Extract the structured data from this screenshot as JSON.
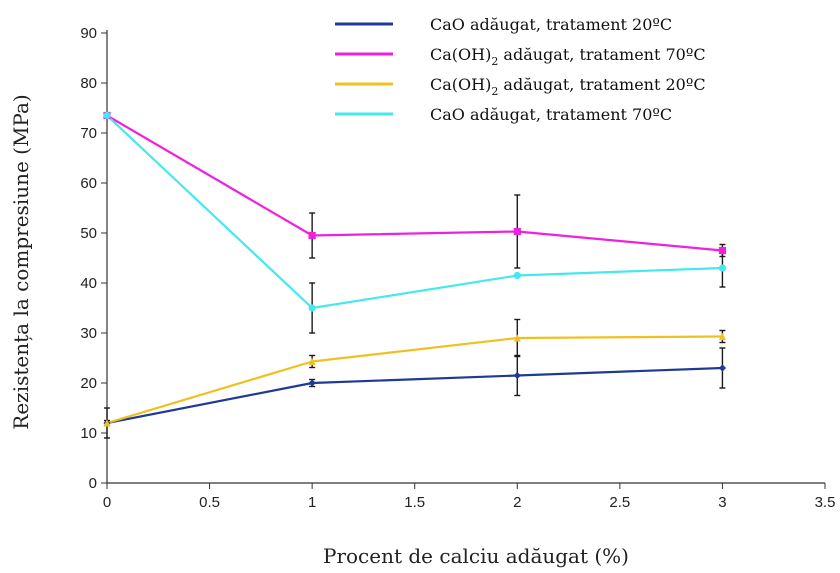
{
  "chart_data": {
    "type": "line",
    "title": "",
    "xlabel": "Procent de calciu adăugat (%)",
    "ylabel": "Rezistența la compresiune (MPa)",
    "xlim": [
      0,
      3.5
    ],
    "ylim": [
      0,
      90
    ],
    "x_ticks": [
      "0",
      "0.5",
      "1",
      "1.5",
      "2",
      "2.5",
      "3",
      "3.5"
    ],
    "y_ticks": [
      "0",
      "10",
      "20",
      "30",
      "40",
      "50",
      "60",
      "70",
      "80",
      "90"
    ],
    "grid": false,
    "legend_position": "top-right",
    "x": [
      0,
      1,
      2,
      3
    ],
    "series": [
      {
        "name": "CaO adăugat, tratament 20ºC",
        "legend_main": "CaO adăugat, tratament 20ºC",
        "legend_sub": "",
        "legend_tail": "",
        "color": "#1f3a93",
        "values": [
          12,
          20,
          21.5,
          23
        ],
        "errors": [
          3,
          0.7,
          4,
          4
        ],
        "marker": "diamond"
      },
      {
        "name": "Ca(OH)2 adăugat, tratament 70ºC",
        "legend_main": "Ca(OH)",
        "legend_sub": "2",
        "legend_tail": " adăugat, tratament 70ºC",
        "color": "#ee22dd",
        "values": [
          73.5,
          49.5,
          50.3,
          46.5
        ],
        "errors": [
          0,
          4.5,
          7.3,
          1.2
        ],
        "marker": "square"
      },
      {
        "name": "Ca(OH)2 adăugat, tratament 20ºC",
        "legend_main": "Ca(OH)",
        "legend_sub": "2",
        "legend_tail": "  adăugat, tratament 20ºC",
        "color": "#f0c020",
        "values": [
          12,
          24.3,
          29,
          29.3
        ],
        "errors": [
          0.5,
          1.2,
          3.7,
          1.2
        ],
        "marker": "triangle"
      },
      {
        "name": "CaO adăugat, tratament 70ºC",
        "legend_main": "CaO adăugat, tratament 70ºC",
        "legend_sub": "",
        "legend_tail": "",
        "color": "#44e8ee",
        "values": [
          73.5,
          35,
          41.5,
          43
        ],
        "errors": [
          0,
          5,
          0,
          3.8
        ],
        "marker": "cross"
      }
    ]
  }
}
